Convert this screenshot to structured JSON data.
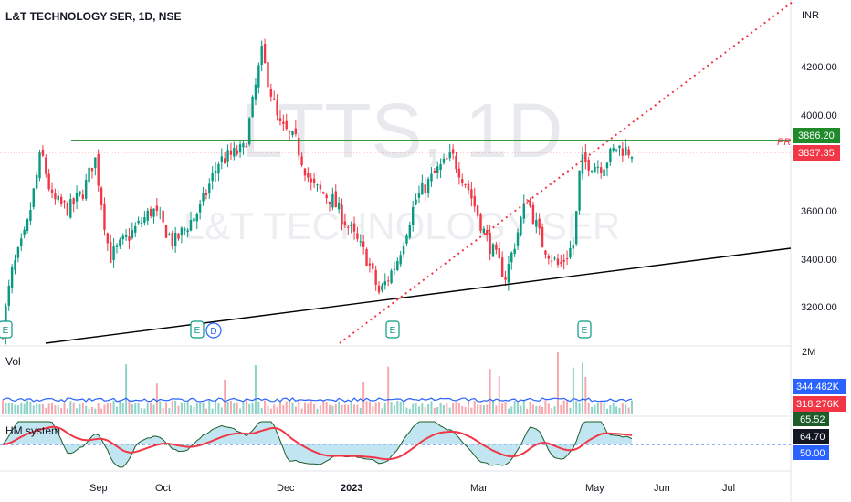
{
  "header": {
    "title": "L&T TECHNOLOGY SER, 1D, NSE"
  },
  "watermark": {
    "ticker": "LTTS, 1D",
    "name": "L&T TECHNOLOGY SER"
  },
  "axes": {
    "currency": "INR",
    "price_ticks": [
      "4200.00",
      "4000.00",
      "3600.00",
      "3400.00",
      "3200.00"
    ],
    "volume_tick": "2M",
    "x_ticks": [
      "Sep",
      "Oct",
      "Dec",
      "2023",
      "Mar",
      "May",
      "Jun",
      "Jul"
    ]
  },
  "price_labels": {
    "resistance": "3886.20",
    "last": "3837.35",
    "resistance_tag": "PR",
    "earnings_marker": "E",
    "dividend_marker": "D"
  },
  "volume_pane": {
    "title": "Vol",
    "label_1": "344.482K",
    "label_2": "318.276K"
  },
  "indicator_pane": {
    "title": "HM system",
    "value_1": "65.52",
    "value_2": "64.70",
    "value_3": "50.00"
  },
  "colors": {
    "up": "#089981",
    "down": "#f23645",
    "resistance_line": "#1e8a2a",
    "trend_line": "#000000",
    "dotted_line": "#f23645",
    "volume_ma": "#2962ff",
    "indicator_line": "#f23645",
    "indicator_fill_up": "#f7b7b7",
    "indicator_fill_down": "#8fd0e8",
    "level_50": "#2962ff"
  },
  "chart_data": {
    "type": "candlestick",
    "title": "L&T TECHNOLOGY SER, 1D, NSE",
    "ylabel": "INR",
    "ylim": [
      3050,
      4380
    ],
    "resistance_level": 3886.2,
    "last_price": 3837.35,
    "close_path": [
      {
        "date": "2022-08-01",
        "close": 3100
      },
      {
        "date": "2022-08-05",
        "close": 3330
      },
      {
        "date": "2022-08-12",
        "close": 3510
      },
      {
        "date": "2022-08-19",
        "close": 3840
      },
      {
        "date": "2022-08-24",
        "close": 3640
      },
      {
        "date": "2022-09-01",
        "close": 3600
      },
      {
        "date": "2022-09-08",
        "close": 3680
      },
      {
        "date": "2022-09-13",
        "close": 3820
      },
      {
        "date": "2022-09-20",
        "close": 3400
      },
      {
        "date": "2022-09-30",
        "close": 3500
      },
      {
        "date": "2022-10-10",
        "close": 3600
      },
      {
        "date": "2022-10-20",
        "close": 3460
      },
      {
        "date": "2022-11-01",
        "close": 3600
      },
      {
        "date": "2022-11-10",
        "close": 3800
      },
      {
        "date": "2022-11-22",
        "close": 3850
      },
      {
        "date": "2022-11-30",
        "close": 4250
      },
      {
        "date": "2022-12-08",
        "close": 3950
      },
      {
        "date": "2022-12-16",
        "close": 3880
      },
      {
        "date": "2022-12-23",
        "close": 3700
      },
      {
        "date": "2023-01-02",
        "close": 3640
      },
      {
        "date": "2023-01-10",
        "close": 3520
      },
      {
        "date": "2023-01-18",
        "close": 3400
      },
      {
        "date": "2023-01-24",
        "close": 3250
      },
      {
        "date": "2023-02-01",
        "close": 3380
      },
      {
        "date": "2023-02-10",
        "close": 3640
      },
      {
        "date": "2023-02-20",
        "close": 3760
      },
      {
        "date": "2023-02-27",
        "close": 3820
      },
      {
        "date": "2023-03-06",
        "close": 3700
      },
      {
        "date": "2023-03-15",
        "close": 3480
      },
      {
        "date": "2023-03-24",
        "close": 3320
      },
      {
        "date": "2023-04-03",
        "close": 3650
      },
      {
        "date": "2023-04-10",
        "close": 3460
      },
      {
        "date": "2023-04-18",
        "close": 3360
      },
      {
        "date": "2023-04-25",
        "close": 3460
      },
      {
        "date": "2023-04-28",
        "close": 3800
      },
      {
        "date": "2023-05-08",
        "close": 3780
      },
      {
        "date": "2023-05-15",
        "close": 3860
      },
      {
        "date": "2023-05-22",
        "close": 3837.35
      }
    ],
    "volume_labels": [
      344482,
      318276
    ],
    "indicator": {
      "level_50": 50.0,
      "values": [
        65.52,
        64.7
      ]
    }
  }
}
